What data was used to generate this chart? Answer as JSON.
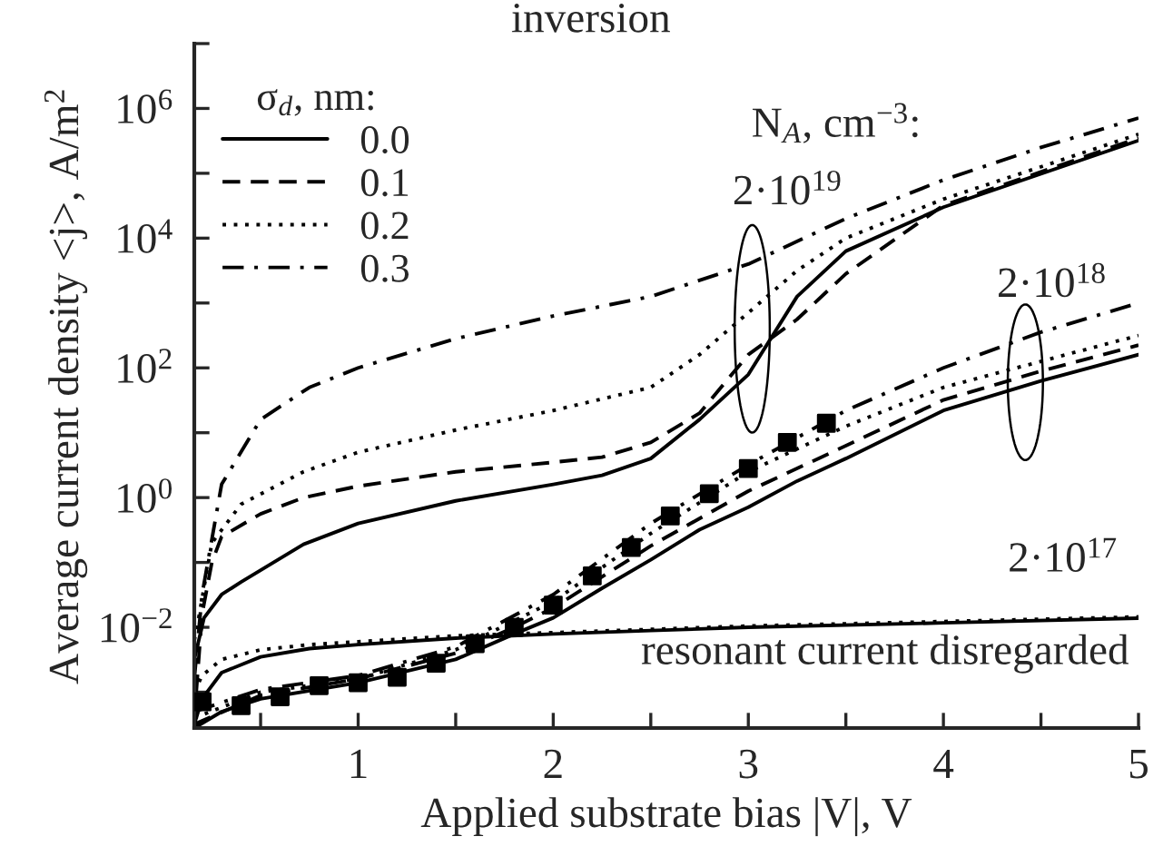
{
  "chart_data": {
    "type": "line",
    "xlabel": "Applied substrate bias |V|, V",
    "ylabel": "Average current density <j>, A/m$^{2}$",
    "legend_title": "σ$_{d}$, nm:",
    "legend": "top left",
    "log": "y",
    "grid": false,
    "xlim": [
      0.16,
      5.0
    ],
    "xticks": [
      {
        "value": 0.5,
        "label": null
      },
      1,
      {
        "value": 1.5,
        "label": null
      },
      2,
      {
        "value": 2.5,
        "label": null
      },
      3,
      {
        "value": 3.5,
        "label": null
      },
      4,
      {
        "value": 4.5,
        "label": null
      },
      5
    ],
    "ylim": [
      0.00028,
      10000000.0
    ],
    "yticks": [
      {
        "value": 0.001,
        "label": null
      },
      {
        "value": 0.01,
        "label": "10$^{−2}$"
      },
      {
        "value": 0.1,
        "label": null
      },
      {
        "value": 1,
        "label": "10$^{0}$"
      },
      {
        "value": 10,
        "label": null
      },
      {
        "value": 100,
        "label": "10$^{2}$"
      },
      {
        "value": 1000,
        "label": null
      },
      {
        "value": 10000,
        "label": "10$^{4}$"
      },
      {
        "value": 100000,
        "label": null
      },
      {
        "value": 1000000,
        "label": "10$^{6}$"
      },
      {
        "value": 10000000,
        "label": null
      }
    ],
    "annotations": [
      "inversion",
      "N$_{A}$, cm$^{−3}$:",
      "2·10$^{19}$",
      "2·10$^{18}$",
      "2·10$^{17}$",
      "resonant current disregarded"
    ],
    "series": [
      {
        "name": "0.0",
        "type": "line",
        "line_style": "solid",
        "color": "#000000",
        "x": [
          0.16,
          0.21,
          0.3,
          0.4,
          0.72,
          1.0,
          1.5,
          2.0,
          2.25,
          2.5,
          2.75,
          3.0,
          3.25,
          3.5,
          4.0,
          4.5,
          5.0
        ],
        "values": [
          0.0032,
          0.014,
          0.032,
          0.05,
          0.19,
          0.4,
          0.89,
          1.6,
          2.2,
          4.0,
          16,
          79,
          1260,
          6310,
          30000,
          98000,
          320000
        ]
      },
      {
        "name": "0.1",
        "type": "line",
        "line_style": "dashed",
        "color": "#000000",
        "x": [
          0.17,
          0.2,
          0.25,
          0.3,
          0.5,
          0.72,
          1.0,
          1.5,
          2.0,
          2.25,
          2.5,
          2.75,
          3.0,
          3.25,
          3.5,
          4.0,
          4.5,
          5.0
        ],
        "values": [
          0.001,
          0.016,
          0.1,
          0.25,
          0.56,
          1,
          1.5,
          2.5,
          3.5,
          4.2,
          7.1,
          20,
          160,
          560,
          2820,
          32000,
          105000,
          350000
        ]
      },
      {
        "name": "0.2",
        "type": "line",
        "line_style": "dotted",
        "color": "#000000",
        "x": [
          0.16,
          0.18,
          0.25,
          0.4,
          0.72,
          1.0,
          1.5,
          2.0,
          2.5,
          2.75,
          3.0,
          3.25,
          3.5,
          4.0,
          4.5,
          5.0
        ],
        "values": [
          0.0063,
          0.0126,
          0.2,
          0.79,
          2.5,
          5.0,
          11,
          22,
          50,
          160,
          708,
          3160,
          10000,
          40000,
          126000,
          400000
        ]
      },
      {
        "name": "0.3",
        "type": "line",
        "line_style": "dashdot",
        "color": "#000000",
        "x": [
          0.16,
          0.2,
          0.3,
          0.5,
          0.75,
          1.0,
          1.5,
          2.0,
          2.25,
          2.5,
          3.0,
          3.5,
          4.0,
          4.5,
          5.0
        ],
        "values": [
          0.0016,
          0.032,
          1.6,
          16,
          50,
          100,
          282,
          631,
          891,
          1260,
          3980,
          20000,
          79000,
          250000,
          710000
        ]
      },
      {
        "type": "line",
        "line_style": "solid",
        "color": "#000000",
        "x": [
          0.16,
          0.3,
          0.5,
          1.0,
          1.5,
          1.8,
          2.0,
          2.25,
          2.5,
          2.75,
          3.0,
          3.25,
          3.5,
          4.0,
          4.5,
          5.0
        ],
        "values": [
          0.00028,
          0.0005,
          0.00079,
          0.0014,
          0.0032,
          0.0079,
          0.014,
          0.04,
          0.11,
          0.32,
          0.71,
          1.8,
          4.0,
          22,
          63,
          160
        ]
      },
      {
        "type": "line",
        "line_style": "dashed",
        "color": "#000000",
        "x": [
          0.16,
          0.5,
          1.0,
          1.5,
          1.8,
          2.0,
          2.5,
          3.0,
          3.5,
          4.0,
          4.5,
          5.0
        ],
        "values": [
          0.00032,
          0.00089,
          0.0016,
          0.004,
          0.01,
          0.02,
          0.18,
          1.26,
          6.3,
          32,
          89,
          224
        ]
      },
      {
        "type": "line",
        "line_style": "dotted",
        "color": "#000000",
        "x": [
          0.16,
          0.5,
          1.0,
          1.5,
          2.0,
          2.5,
          3.0,
          3.5,
          4.0,
          4.5,
          5.0
        ],
        "values": [
          0.0004,
          0.001,
          0.0016,
          0.0045,
          0.025,
          0.28,
          2.5,
          12.6,
          50,
          126,
          316
        ]
      },
      {
        "type": "line",
        "line_style": "dashdot",
        "color": "#000000",
        "x": [
          0.16,
          0.5,
          1.0,
          1.5,
          2.0,
          2.5,
          3.0,
          3.5,
          4.0,
          4.5,
          5.0
        ],
        "values": [
          0.0005,
          0.0011,
          0.0018,
          0.005,
          0.032,
          0.4,
          3.2,
          22,
          100,
          355,
          1000
        ]
      },
      {
        "type": "line",
        "line_style": "solid",
        "color": "#000000",
        "x": [
          0.16,
          0.2,
          0.3,
          0.5,
          0.75,
          1.0,
          1.5,
          2.0,
          2.5,
          3.0,
          4.0,
          5.0
        ],
        "values": [
          0.00032,
          0.00079,
          0.002,
          0.0035,
          0.0047,
          0.0054,
          0.0068,
          0.0079,
          0.0089,
          0.01,
          0.0117,
          0.0138
        ]
      },
      {
        "type": "line",
        "line_style": "dotted",
        "color": "#000000",
        "x": [
          0.16,
          0.2,
          0.3,
          0.5,
          0.75,
          1.0,
          1.5,
          2.0,
          2.5,
          3.0,
          4.0,
          5.0
        ],
        "values": [
          0.001,
          0.0018,
          0.0032,
          0.0045,
          0.0054,
          0.006,
          0.0074,
          0.0083,
          0.0093,
          0.0105,
          0.0123,
          0.0145
        ]
      },
      {
        "type": "scatter",
        "marker": "square",
        "color": "#000000",
        "x": [
          0.2,
          0.4,
          0.6,
          0.8,
          1.0,
          1.2,
          1.4,
          1.6,
          1.8,
          2.0,
          2.2,
          2.4,
          2.6,
          2.8,
          3.0,
          3.2,
          3.4
        ],
        "values": [
          0.00071,
          0.00062,
          0.00085,
          0.00126,
          0.0014,
          0.0017,
          0.0028,
          0.0056,
          0.01,
          0.022,
          0.062,
          0.17,
          0.52,
          1.15,
          2.8,
          7.1,
          14
        ]
      }
    ]
  }
}
